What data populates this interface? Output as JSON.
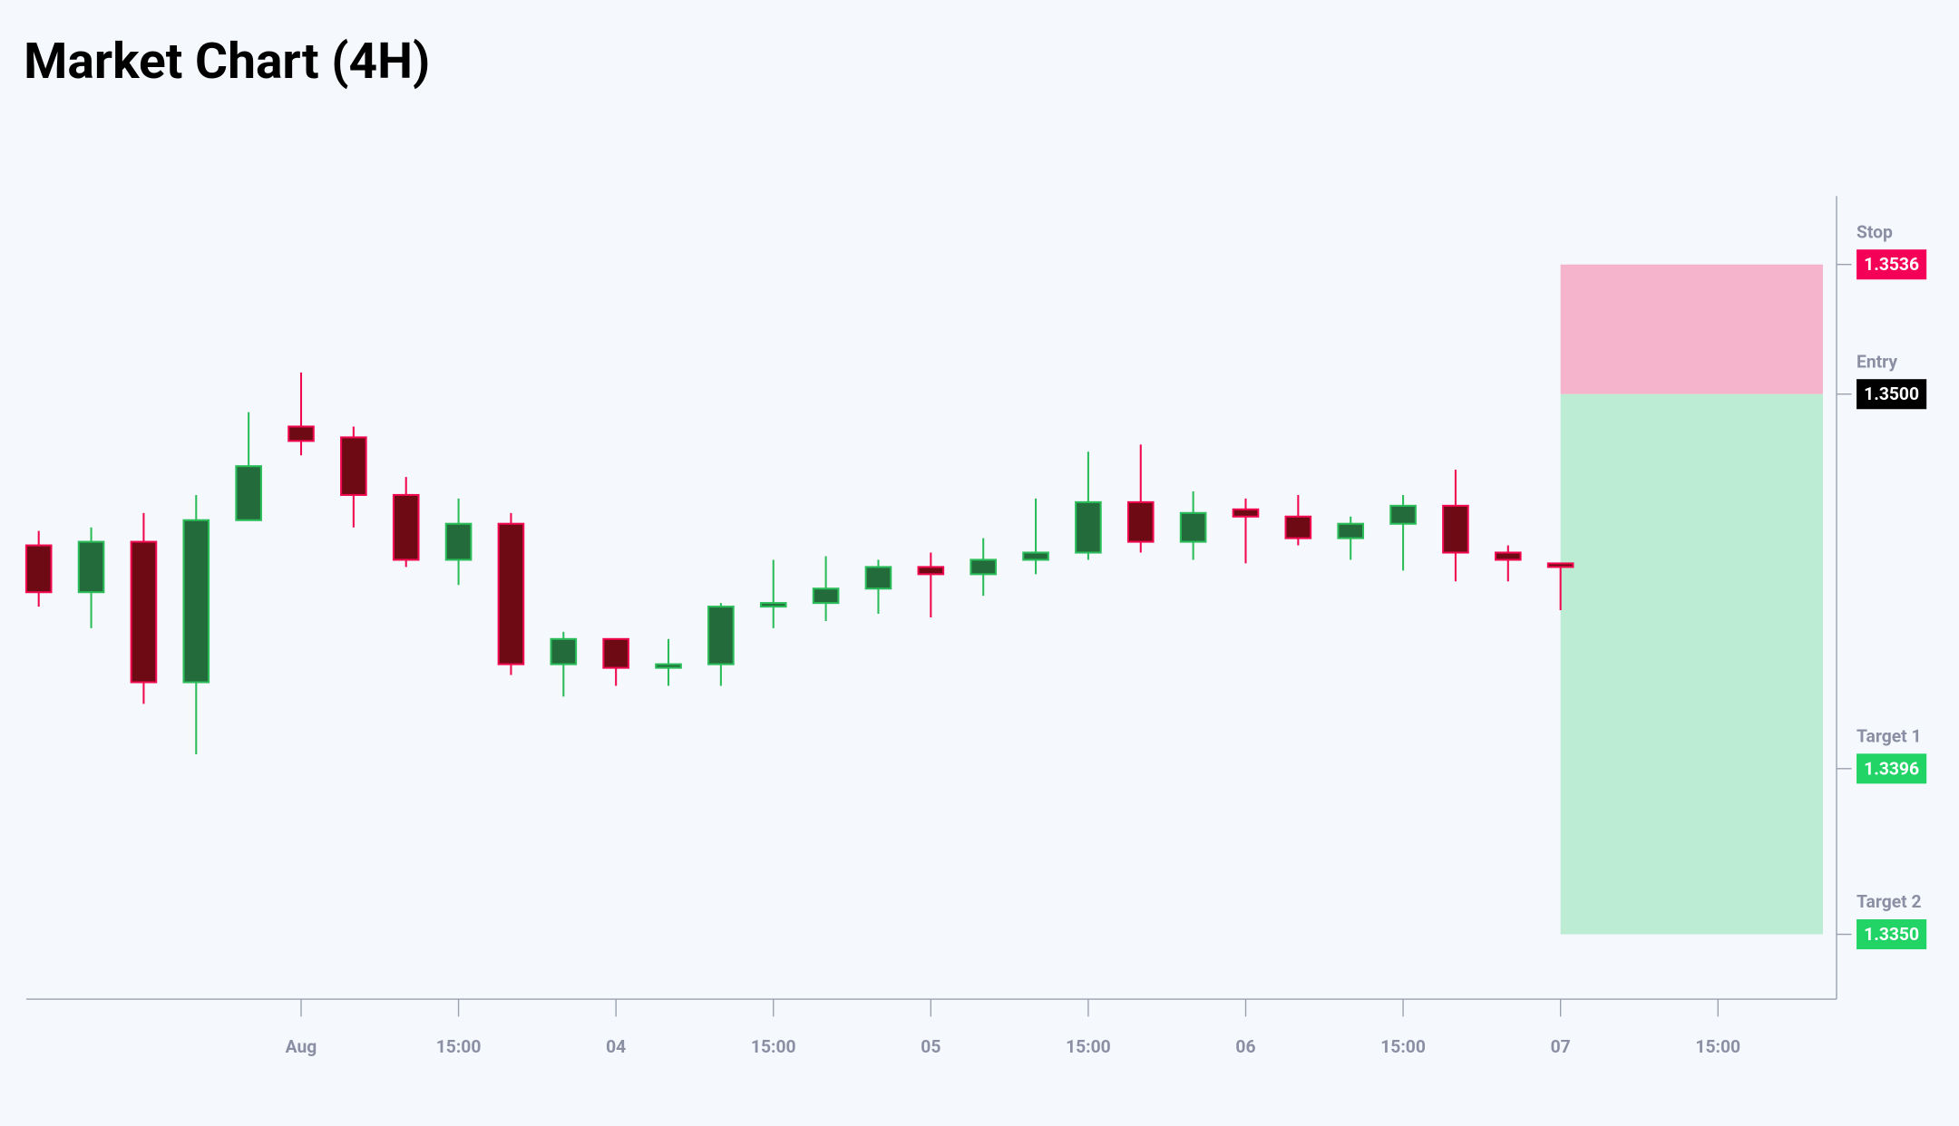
{
  "chart_data": {
    "type": "candlestick",
    "title": "Market Chart (4H)",
    "x": [
      0,
      1,
      2,
      3,
      4,
      5,
      6,
      7,
      8,
      9,
      10,
      11,
      12,
      13,
      14,
      15,
      16,
      17,
      18,
      19,
      20,
      21,
      22,
      23,
      24,
      25,
      26,
      27,
      28,
      29
    ],
    "open": [
      1.3458,
      1.3445,
      1.3459,
      1.342,
      1.3465,
      1.3491,
      1.3488,
      1.3472,
      1.3454,
      1.3464,
      1.3425,
      1.3432,
      1.3424,
      1.3425,
      1.3441,
      1.3442,
      1.3446,
      1.3452,
      1.345,
      1.3454,
      1.3456,
      1.347,
      1.3459,
      1.3468,
      1.3466,
      1.346,
      1.3464,
      1.3469,
      1.3456,
      1.3453
    ],
    "high": [
      1.3462,
      1.3463,
      1.3467,
      1.3472,
      1.3495,
      1.3506,
      1.3491,
      1.3477,
      1.3471,
      1.3467,
      1.3434,
      1.3432,
      1.3432,
      1.3442,
      1.3454,
      1.3455,
      1.3454,
      1.3456,
      1.346,
      1.3471,
      1.3484,
      1.3486,
      1.3473,
      1.3471,
      1.3472,
      1.3466,
      1.3472,
      1.3479,
      1.3458,
      1.3453
    ],
    "low": [
      1.3441,
      1.3435,
      1.3414,
      1.34,
      1.3465,
      1.3483,
      1.3463,
      1.3452,
      1.3447,
      1.3422,
      1.3416,
      1.3419,
      1.3419,
      1.3419,
      1.3435,
      1.3437,
      1.3439,
      1.3438,
      1.3444,
      1.345,
      1.3454,
      1.3456,
      1.3454,
      1.3453,
      1.3458,
      1.3454,
      1.3451,
      1.3448,
      1.3448,
      1.344
    ],
    "close": [
      1.3445,
      1.3459,
      1.342,
      1.3465,
      1.348,
      1.3487,
      1.3472,
      1.3454,
      1.3464,
      1.3425,
      1.3432,
      1.3424,
      1.3425,
      1.3441,
      1.3442,
      1.3446,
      1.3452,
      1.345,
      1.3454,
      1.3456,
      1.347,
      1.3459,
      1.3467,
      1.3466,
      1.346,
      1.3464,
      1.3469,
      1.3456,
      1.3454,
      1.3452
    ],
    "up_color": "#2bbd5a",
    "up_fill": "#236b3a",
    "down_color": "#f0094f",
    "down_fill": "#6e0a14",
    "xlim": [
      -0.238,
      34.26
    ],
    "ylim": [
      1.3332,
      1.3555
    ],
    "xticks": [
      {
        "value": 5,
        "label": "Aug"
      },
      {
        "value": 8,
        "label": "15:00"
      },
      {
        "value": 11,
        "label": "04"
      },
      {
        "value": 14,
        "label": "15:00"
      },
      {
        "value": 17,
        "label": "05"
      },
      {
        "value": 20,
        "label": "15:00"
      },
      {
        "value": 23,
        "label": "06"
      },
      {
        "value": 26,
        "label": "15:00"
      },
      {
        "value": 29,
        "label": "07"
      },
      {
        "value": 32,
        "label": "15:00"
      }
    ],
    "levels": [
      {
        "name": "Stop",
        "value": 1.3536,
        "color": "#f50057"
      },
      {
        "name": "Entry",
        "value": 1.35,
        "label": "1.3500",
        "color": "#000000"
      },
      {
        "name": "Target 1",
        "value": 1.3396,
        "color": "#22d466"
      },
      {
        "name": "Target 2",
        "value": 1.335,
        "label": "1.3350",
        "color": "#22d466"
      }
    ],
    "position": {
      "x_start": 29,
      "x_end": 34,
      "risk_color": "#f5b4cb",
      "reward_color": "#bdecd4"
    }
  }
}
